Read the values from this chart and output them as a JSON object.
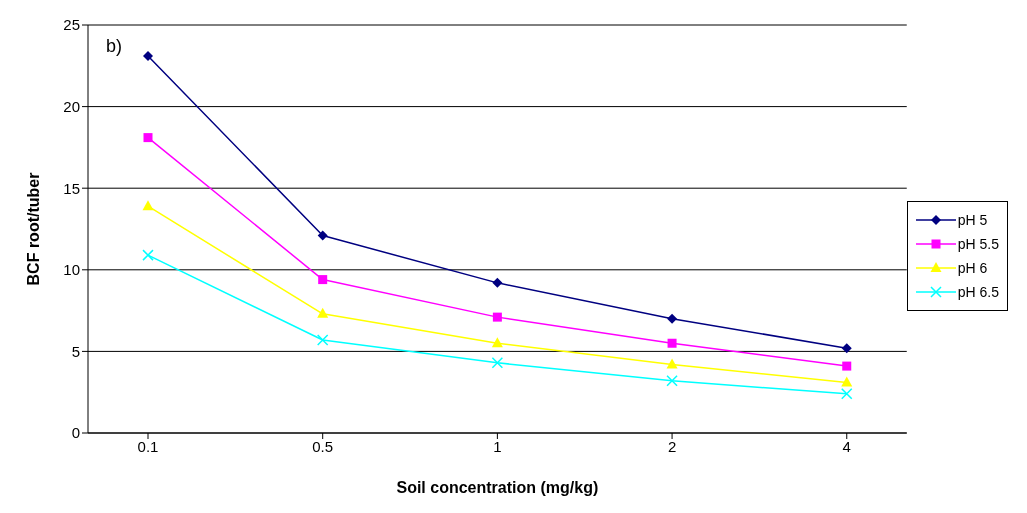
{
  "chart_data": {
    "type": "line",
    "xlabel": "Soil concentration (mg/kg)",
    "ylabel": "BCF root/tuber",
    "annotations": [
      "b)"
    ],
    "categories": [
      "0.1",
      "0.5",
      "1",
      "2",
      "4"
    ],
    "series": [
      {
        "name": "pH 5",
        "color": "#000080",
        "marker": "diamond",
        "values": [
          23.1,
          12.1,
          9.2,
          7.0,
          5.2
        ]
      },
      {
        "name": "pH 5.5",
        "color": "#ff00ff",
        "marker": "square",
        "values": [
          18.1,
          9.4,
          7.1,
          5.5,
          4.1
        ]
      },
      {
        "name": "pH 6",
        "color": "#ffff00",
        "marker": "triangle",
        "values": [
          13.9,
          7.3,
          5.5,
          4.2,
          3.1
        ]
      },
      {
        "name": "pH 6.5",
        "color": "#00ffff",
        "marker": "cross",
        "values": [
          10.9,
          5.7,
          4.3,
          3.2,
          2.4
        ]
      }
    ],
    "ylim": [
      0,
      25
    ],
    "yticks": [
      0,
      5,
      10,
      15,
      20,
      25
    ],
    "grid": "y",
    "legend": "right",
    "line_style": "solid"
  }
}
